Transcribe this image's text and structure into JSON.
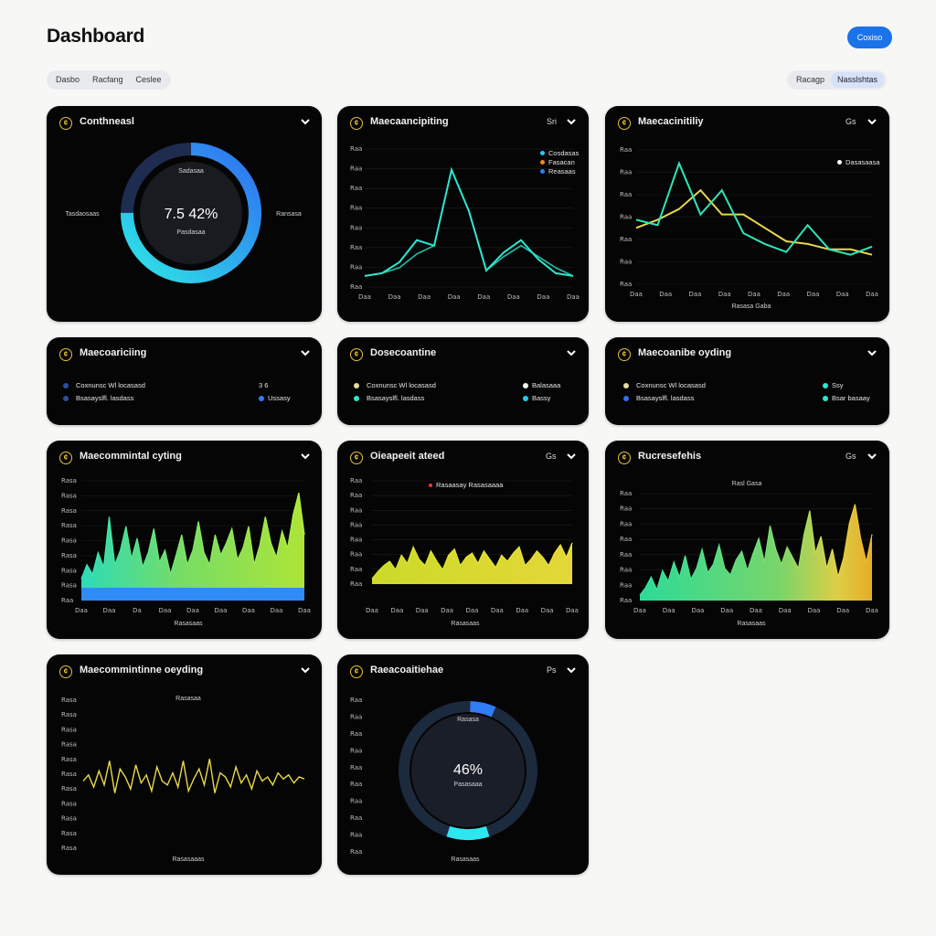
{
  "header": {
    "title": "Dashboard",
    "action_label": "Coxiso"
  },
  "filters_left": [
    "Dasbo",
    "Racfang",
    "Ceslee"
  ],
  "filters_right": [
    "Racagp",
    "Nasslshtas"
  ],
  "colors": {
    "cyan": "#2ee6d0",
    "blue": "#2f7cf6",
    "yellow": "#e8d84a",
    "orange": "#f08a24",
    "card_bg": "#050505",
    "accent": "#1a73e8"
  },
  "cards": {
    "c1": {
      "title": "Conthneasl",
      "icon": "coin-icon",
      "center_value": "7.5 42%",
      "center_top": "Sadasaa",
      "center_bottom": "Pasdasaa",
      "left_label": "Tasdaosaas",
      "right_label": "Ransasa",
      "progress_percent": 75
    },
    "c2": {
      "title": "Maecaancipiting",
      "extra": "Sri",
      "legend": [
        "Cosdasas",
        "Fasacan",
        "Reasaas"
      ],
      "y_ticks": [
        "Raa",
        "Raa",
        "Raa",
        "Raa",
        "Raa",
        "Raa",
        "Raa",
        "Raa"
      ],
      "x_ticks": [
        "Daa",
        "Daa",
        "Daa",
        "Daa",
        "Daa",
        "Daa",
        "Daa",
        "Daa"
      ]
    },
    "c3": {
      "title": "Maecacinitiliy",
      "extra": "Gs",
      "legend": [
        "Dasasaasa"
      ],
      "x_label": "Rasasa Gaba",
      "y_ticks": [
        "Raa",
        "Raa",
        "Raa",
        "Raa",
        "Raa",
        "Raa",
        "Raa"
      ],
      "x_ticks": [
        "Daa",
        "Daa",
        "Daa",
        "Daa",
        "Daa",
        "Daa",
        "Daa",
        "Daa",
        "Daa"
      ]
    },
    "c4": {
      "title": "Maecoariciing",
      "rows": [
        {
          "label": "Coxnunsc Wl locasasd",
          "value": "3 6"
        },
        {
          "label": "Bsasayslfl. lasdass",
          "value": "Ussasy"
        }
      ]
    },
    "c5": {
      "title": "Dosecoantine",
      "rows": [
        {
          "label": "Coxnunsc Wl locasasd",
          "value": "Balasaaa"
        },
        {
          "label": "Bsasayslfl. lasdass",
          "value": "Bassy"
        }
      ]
    },
    "c6": {
      "title": "Maecoanibe oyding",
      "rows": [
        {
          "label": "Coxnunsc Wl locasasd",
          "value": "Ssy"
        },
        {
          "label": "Bsasayslfl. lasdass",
          "value": "Bsar basaay"
        }
      ]
    },
    "c7": {
      "title": "Maecommintal cyting",
      "x_label": "Rasasaas",
      "y_ticks": [
        "Rasa",
        "Rasa",
        "Rasa",
        "Rasa",
        "Rasa",
        "Rasa",
        "Rasa",
        "Rasa",
        "Raa"
      ],
      "x_ticks": [
        "Daa",
        "Daa",
        "Da",
        "Daa",
        "Daa",
        "Daa",
        "Daa",
        "Daa",
        "Daa"
      ]
    },
    "c8": {
      "title": "Oieapeeit ateed",
      "extra": "Gs",
      "legend": [
        "Rasaasay Rasasaaaa"
      ],
      "x_label": "Rasasaas",
      "y_ticks": [
        "Raa",
        "Raa",
        "Raa",
        "Raa",
        "Raa",
        "Raa",
        "Raa",
        "Raa"
      ],
      "x_ticks": [
        "Daa",
        "Daa",
        "Daa",
        "Daa",
        "Daa",
        "Daa",
        "Daa",
        "Daa",
        "Daa"
      ]
    },
    "c9": {
      "title": "Rucresefehis",
      "extra": "Gs",
      "top_label": "Rasl Gasa",
      "x_label": "Rasasaas",
      "y_ticks": [
        "Raa",
        "Raa",
        "Raa",
        "Raa",
        "Raa",
        "Raa",
        "Raa",
        "Raa"
      ],
      "x_ticks": [
        "Daa",
        "Daa",
        "Daa",
        "Daa",
        "Daa",
        "Daa",
        "Daa",
        "Daa",
        "Daa"
      ]
    },
    "c10": {
      "title": "Maecommintinne oeyding",
      "top_label": "Rasasaa",
      "x_label": "Rasasaaas",
      "y_ticks": [
        "Rasa",
        "Rasa",
        "Rasa",
        "Rasa",
        "Rasa",
        "Rasa",
        "Rasa",
        "Rasa",
        "Rasa",
        "Rasa",
        "Rasa"
      ]
    },
    "c11": {
      "title": "Raeacoaitiehae",
      "extra": "Ps",
      "center_value": "46%",
      "center_top": "Rasasa",
      "center_bottom": "Pasasaaa",
      "x_label": "Rasasaas",
      "y_ticks": [
        "Raa",
        "Raa",
        "Raa",
        "Raa",
        "Raa",
        "Raa",
        "Raa",
        "Raa",
        "Raa",
        "Raa"
      ],
      "progress_percent": 46
    }
  },
  "chart_data": [
    {
      "type": "line",
      "title": "Maecaancipiting",
      "x": [
        0,
        1,
        2,
        3,
        4,
        5,
        6,
        7,
        8,
        9,
        10,
        11,
        12
      ],
      "series": [
        {
          "name": "Cosdasas",
          "values": [
            8,
            10,
            18,
            34,
            30,
            85,
            55,
            12,
            25,
            34,
            20,
            10,
            8
          ]
        },
        {
          "name": "Reasaas",
          "values": [
            8,
            10,
            14,
            24,
            30,
            85,
            55,
            12,
            22,
            30,
            22,
            14,
            8
          ]
        }
      ],
      "ylim": [
        0,
        100
      ]
    },
    {
      "type": "line",
      "title": "Maecacinitiliy",
      "x": [
        0,
        1,
        2,
        3,
        4,
        5,
        6,
        7,
        8,
        9,
        10,
        11
      ],
      "series": [
        {
          "name": "cyan",
          "values": [
            48,
            44,
            90,
            52,
            70,
            38,
            30,
            24,
            44,
            26,
            22,
            28
          ]
        },
        {
          "name": "yellow",
          "values": [
            42,
            48,
            56,
            70,
            52,
            52,
            42,
            32,
            30,
            26,
            26,
            22
          ]
        }
      ],
      "ylim": [
        0,
        100
      ]
    },
    {
      "type": "area",
      "title": "Maecommintal cyting",
      "series": [
        {
          "name": "gradient",
          "values": [
            18,
            30,
            22,
            40,
            28,
            70,
            30,
            42,
            62,
            35,
            52,
            28,
            40,
            60,
            32,
            42,
            22,
            38,
            55,
            30,
            42,
            66,
            40,
            30,
            55,
            38,
            48,
            60,
            34,
            44,
            62,
            30,
            46,
            70,
            48,
            36,
            58,
            44,
            72,
            90,
            55
          ]
        }
      ],
      "ylim": [
        0,
        100
      ]
    },
    {
      "type": "area",
      "title": "Oieapeeit ateed",
      "series": [
        {
          "name": "yellow",
          "values": [
            5,
            12,
            18,
            22,
            14,
            28,
            20,
            36,
            24,
            18,
            32,
            22,
            14,
            28,
            34,
            18,
            26,
            30,
            20,
            32,
            24,
            16,
            28,
            22,
            30,
            36,
            18,
            24,
            32,
            26,
            18,
            30,
            38,
            26,
            40
          ]
        }
      ],
      "ylim": [
        0,
        100
      ]
    },
    {
      "type": "area",
      "title": "Rucresefehis",
      "series": [
        {
          "name": "gradient",
          "values": [
            5,
            12,
            22,
            10,
            28,
            18,
            36,
            22,
            42,
            20,
            30,
            48,
            26,
            34,
            52,
            30,
            24,
            38,
            46,
            28,
            44,
            58,
            36,
            70,
            48,
            34,
            50,
            40,
            30,
            62,
            84,
            44,
            60,
            30,
            48,
            22,
            40,
            72,
            90,
            58,
            36,
            62
          ]
        }
      ],
      "ylim": [
        0,
        100
      ]
    },
    {
      "type": "line",
      "title": "Maecommintinne oeyding",
      "series": [
        {
          "name": "yellow",
          "values": [
            50,
            56,
            44,
            60,
            46,
            70,
            38,
            62,
            54,
            42,
            66,
            48,
            56,
            40,
            64,
            50,
            46,
            58,
            44,
            70,
            40,
            52,
            62,
            46,
            72,
            38,
            58,
            54,
            44,
            64,
            48,
            56,
            42,
            60,
            50,
            54,
            46,
            58,
            52,
            56,
            48,
            54,
            52
          ]
        }
      ],
      "ylim": [
        0,
        100
      ]
    }
  ]
}
